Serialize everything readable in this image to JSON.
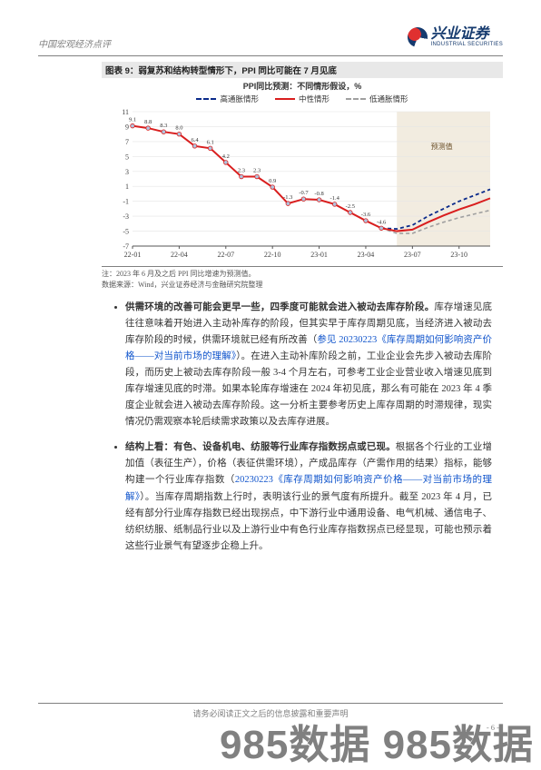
{
  "header": {
    "doc_title": "中国宏观经济点评",
    "logo_cn": "兴业证券",
    "logo_en": "INDUSTRIAL SECURITIES"
  },
  "chart": {
    "title_label": "图表 9：弱复苏和结构转型情形下，PPI 同比可能在 7 月见底",
    "caption": "PPI同比预测：不同情形假设，%",
    "legend": {
      "high": "高通胀情形",
      "mid": "中性情形",
      "low": "低通胀情形"
    },
    "forecast_marker": "预测值",
    "x_labels": [
      "22-01",
      "22-04",
      "22-07",
      "22-10",
      "23-01",
      "23-04",
      "23-07",
      "23-10"
    ],
    "y_ticks": [
      11,
      9,
      7,
      5,
      3,
      1,
      -1,
      -3,
      -5,
      -7
    ],
    "history_points": [
      [
        0,
        9.1
      ],
      [
        1,
        8.8
      ],
      [
        2,
        8.3
      ],
      [
        3,
        8.0
      ],
      [
        4,
        6.4
      ],
      [
        5,
        6.1
      ],
      [
        6,
        4.2
      ],
      [
        7,
        2.3
      ],
      [
        8,
        2.3
      ],
      [
        9,
        0.9
      ],
      [
        10,
        -1.3
      ],
      [
        11,
        -0.7
      ],
      [
        12,
        -0.8
      ],
      [
        13,
        -1.4
      ],
      [
        14,
        -2.5
      ],
      [
        15,
        -3.6
      ],
      [
        16,
        -4.6
      ]
    ],
    "last_hist_index": 16,
    "high_fc": [
      [
        16,
        -4.6
      ],
      [
        17,
        -4.7
      ],
      [
        18,
        -4.2
      ],
      [
        19,
        -3.0
      ],
      [
        20,
        -2.0
      ],
      [
        21,
        -1.0
      ],
      [
        22,
        -0.2
      ],
      [
        23,
        0.6
      ]
    ],
    "mid_fc": [
      [
        16,
        -4.6
      ],
      [
        17,
        -5.0
      ],
      [
        18,
        -4.8
      ],
      [
        19,
        -3.8
      ],
      [
        20,
        -2.9
      ],
      [
        21,
        -2.1
      ],
      [
        22,
        -1.4
      ],
      [
        23,
        -0.6
      ]
    ],
    "low_fc": [
      [
        16,
        -4.6
      ],
      [
        17,
        -5.3
      ],
      [
        18,
        -5.3
      ],
      [
        19,
        -4.5
      ],
      [
        20,
        -3.8
      ],
      [
        21,
        -3.2
      ],
      [
        22,
        -2.7
      ],
      [
        23,
        -2.2
      ]
    ],
    "n_x_points": 24,
    "colors": {
      "high": "#0a2a8a",
      "mid": "#d91e1e",
      "low": "#a0a0a0",
      "hist": "#d91e1e",
      "grid": "#e5e5e5",
      "axis": "#555555",
      "marker_fill": "#b0c4de",
      "forecast_shade": "#f2ece0",
      "forecast_text": "#6b4f2a"
    },
    "footnote1": "注：2023 年 6 月及之后 PPI 同比增速为预测值。",
    "footnote2": "数据来源：Wind，兴业证券经济与金融研究院整理"
  },
  "body": {
    "p1_bold": "供需环境的改善可能会更早一些，四季度可能就会进入被动去库存阶段。",
    "p1_rest_a": "库存增速见底往往意味着开始进入主动补库存的阶段，但其实早于库存周期见底，当经济进入被动去库存阶段的时候，供需环境就已经有所改善（",
    "p1_link1": "参见 20230223《库存周期如何影响资产价格——对当前市场的理解》",
    "p1_rest_b": "）。在进入主动补库阶段之前，工业企业会先步入被动去库阶段，而历史上被动去库存阶段一般 3-4 个月左右，可参考工业企业营业收入增速见底到库存增速见底的时滞。如果本轮库存增速在 2024 年初见底，那么有可能在 2023 年 4 季度企业就会进入被动去库存阶段。这一分析主要参考历史上库存周期的时滞规律，现实情况仍需观察本轮后续需求政策以及去库存进展。",
    "p2_bold": "结构上看：有色、设备机电、纺服等行业库存指数拐点或已现。",
    "p2_rest_a": "根据各个行业的工业增加值（表征生产），价格（表征供需环境），产成品库存（产需作用的结果）指标，能够构建一个行业库存指数（",
    "p2_link1": "20230223《库存周期如何影响资产价格——对当前市场的理解》",
    "p2_rest_b": "）。当库存周期指数上行时，表明该行业的景气度有所提升。截至 2023 年 4 月，已经有部分行业库存指数已经出现拐点，中下游行业中通用设备、电气机械、通信电子、纺织纺服、纸制品行业以及上游行业中有色行业库存指数拐点已经显现，可能也预示着这些行业景气有望逐步企稳上升。"
  },
  "footer": {
    "disclaimer": "请务必阅读正文之后的信息披露和重要声明",
    "page": "- 6 -"
  },
  "watermark": "985数据 985数据"
}
